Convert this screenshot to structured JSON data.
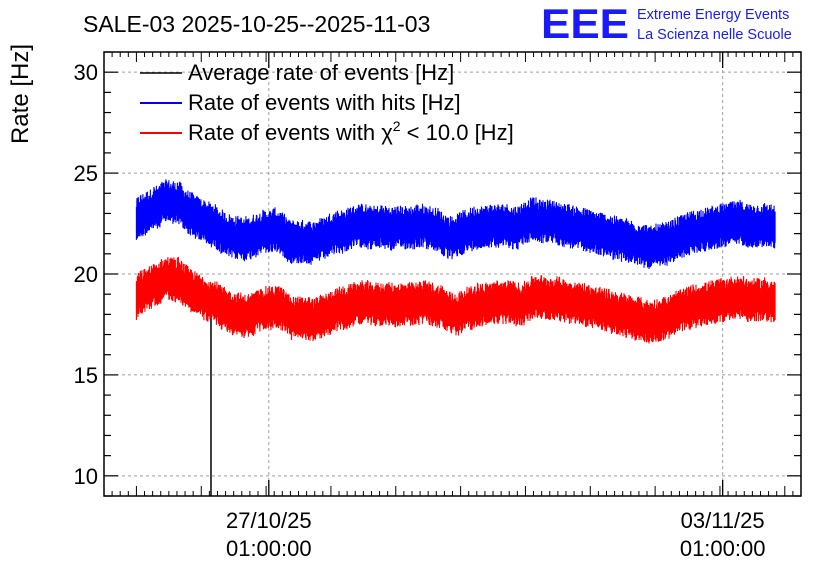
{
  "header": {
    "title": "SALE-03 2025-10-25--2025-11-03",
    "logo_letters": "EEE",
    "logo_line1": "Extreme Energy Events",
    "logo_line2": "La Scienza nelle Scuole"
  },
  "colors": {
    "average": "#000000",
    "hits": "#0000ff",
    "chi2": "#ff0000",
    "logo": "#1a1aff",
    "grid": "#a0a0a0"
  },
  "chart_data": {
    "type": "line",
    "title": "SALE-03 2025-10-25--2025-11-03",
    "xlabel": "",
    "ylabel": "Rate [Hz]",
    "ylim": [
      9,
      31
    ],
    "x_unit": "days since 25/10/25 00:00",
    "xlim": [
      -0.5,
      10.25
    ],
    "yticks": [
      10,
      15,
      20,
      25,
      30
    ],
    "xticks": [
      {
        "x": 2.0417,
        "line1": "27/10/25",
        "line2": "01:00:00"
      },
      {
        "x": 9.0417,
        "line1": "03/11/25",
        "line2": "01:00:00"
      }
    ],
    "grid": true,
    "legend_position": "top-left",
    "series": [
      {
        "name": "Average rate of events [Hz]",
        "key": "average",
        "color": "#000000",
        "x": [
          1.15,
          1.15
        ],
        "values": [
          9.0,
          18.2
        ]
      },
      {
        "name": "Rate of events with hits [Hz]",
        "key": "hits",
        "color": "#0000ff",
        "x_start": 0.0,
        "x_end": 9.85,
        "step_days": 0.125,
        "band_half_width": 1.0,
        "values": [
          22.6,
          22.8,
          22.9,
          22.9,
          23.0,
          23.0,
          23.1,
          23.1,
          23.2,
          23.3,
          23.3,
          23.3,
          23.4,
          23.5,
          23.5,
          23.6,
          23.6,
          23.6,
          23.5,
          23.6,
          23.4,
          23.6,
          23.5,
          23.4,
          23.2,
          23.2,
          23.1,
          23.0,
          23.0,
          22.9,
          22.8,
          22.8,
          22.7,
          22.7,
          22.6,
          22.6,
          22.5,
          22.5,
          22.4,
          22.4,
          22.4,
          22.3,
          22.2,
          22.1,
          22.1,
          22.0,
          21.9,
          21.9,
          21.9,
          21.8,
          21.8,
          21.8,
          21.8,
          21.8,
          21.7,
          21.7,
          21.8,
          21.7,
          21.8,
          21.8,
          21.9,
          21.9,
          22.0,
          22.0,
          22.1,
          22.1,
          22.1,
          22.1,
          22.1,
          22.1,
          22.2,
          22.2,
          22.1,
          22.1,
          22.0,
          21.9,
          21.9,
          21.7,
          21.6,
          21.6,
          21.6,
          21.6,
          21.6,
          21.6,
          21.6,
          21.6,
          21.6,
          21.6,
          21.6,
          21.5,
          21.5,
          21.6,
          21.6,
          21.7,
          21.7,
          21.7,
          21.8,
          21.8,
          21.9,
          22.0,
          22.0,
          22.0,
          22.1,
          22.1,
          22.1,
          22.1,
          22.1,
          22.2,
          22.2,
          22.3,
          22.3,
          22.3,
          22.4,
          22.4,
          22.4,
          22.4,
          22.4,
          22.4,
          22.3,
          22.3,
          22.3,
          22.3,
          22.3,
          22.3,
          22.3,
          22.4,
          22.3,
          22.3,
          22.3,
          22.3,
          22.2,
          22.3,
          22.3,
          22.3,
          22.3,
          22.3,
          22.3,
          22.3,
          22.3,
          22.3,
          22.3,
          22.3,
          22.3,
          22.4,
          22.4,
          22.4,
          22.4,
          22.4,
          22.3,
          22.3,
          22.3,
          22.2,
          22.2,
          22.2,
          22.2,
          22.1,
          22.0,
          21.9,
          21.9,
          21.8,
          21.8,
          21.8,
          21.8,
          21.9,
          21.9,
          22.0,
          22.0,
          22.1,
          22.1,
          22.1,
          22.2,
          22.2,
          22.3,
          22.3,
          22.3,
          22.3,
          22.3,
          22.3,
          22.3,
          22.4,
          22.4,
          22.4,
          22.4,
          22.4,
          22.4,
          22.4,
          22.4,
          22.4,
          22.4,
          22.4,
          22.4,
          22.3,
          22.3,
          22.3,
          22.3,
          22.3,
          22.4,
          22.5,
          22.5,
          22.6,
          22.6,
          22.7,
          22.7,
          22.7,
          22.7,
          22.6,
          22.6,
          22.6,
          22.6,
          22.6,
          22.6,
          22.6,
          22.6,
          22.6,
          22.5,
          22.5,
          22.5,
          22.5,
          22.4,
          22.4,
          22.4,
          22.4,
          22.3,
          22.3,
          22.3,
          22.3,
          22.3,
          22.2,
          22.2,
          22.2,
          22.2,
          22.1,
          22.1,
          22.1,
          22.1,
          22.0,
          22.0,
          22.0,
          22.0,
          21.9,
          21.9,
          21.9,
          21.9,
          21.8,
          21.8,
          21.8,
          21.8,
          21.7,
          21.7,
          21.7,
          21.7,
          21.6,
          21.6,
          21.6,
          21.5,
          21.5,
          21.5,
          21.5,
          21.5,
          21.4,
          21.4,
          21.4,
          21.3,
          21.3,
          21.3,
          21.4,
          21.4,
          21.4,
          21.4,
          21.5,
          21.5,
          21.5,
          21.5,
          21.6,
          21.6,
          21.7,
          21.8,
          21.8,
          21.8,
          21.9,
          21.9,
          22.0,
          22.0,
          22.0,
          22.1,
          22.1,
          22.1,
          22.1,
          22.2,
          22.2,
          22.2,
          22.2,
          22.2,
          22.3,
          22.3,
          22.3,
          22.3,
          22.4,
          22.4,
          22.4,
          22.4,
          22.4,
          22.5,
          22.5,
          22.5,
          22.5,
          22.5,
          22.5,
          22.6,
          22.5,
          22.5,
          22.5,
          22.4,
          22.4,
          22.4,
          22.4,
          22.4,
          22.4,
          22.4,
          22.4,
          22.4,
          22.5,
          22.4,
          22.4,
          22.4,
          22.3,
          22.3
        ]
      },
      {
        "name": "Rate of events with χ² < 10.0 [Hz]",
        "key": "chi2",
        "color": "#ff0000",
        "x_start": 0.0,
        "x_end": 9.85,
        "step_days": 0.125,
        "band_half_width": 1.0,
        "values": [
          18.8,
          19.0,
          19.1,
          19.1,
          19.2,
          19.2,
          19.3,
          19.3,
          19.4,
          19.5,
          19.5,
          19.5,
          19.6,
          19.7,
          19.7,
          19.8,
          19.8,
          19.8,
          19.7,
          19.8,
          19.6,
          19.8,
          19.7,
          19.6,
          19.4,
          19.4,
          19.3,
          19.2,
          19.2,
          19.1,
          19.0,
          19.0,
          18.9,
          18.9,
          18.8,
          18.8,
          18.7,
          18.7,
          18.6,
          18.6,
          18.6,
          18.5,
          18.4,
          18.3,
          18.3,
          18.2,
          18.1,
          18.1,
          18.1,
          18.0,
          18.0,
          18.0,
          18.0,
          18.0,
          17.9,
          17.9,
          18.0,
          17.9,
          18.0,
          18.0,
          18.1,
          18.1,
          18.2,
          18.2,
          18.3,
          18.3,
          18.3,
          18.3,
          18.3,
          18.3,
          18.4,
          18.4,
          18.3,
          18.3,
          18.2,
          18.1,
          18.1,
          17.9,
          17.8,
          17.8,
          17.8,
          17.8,
          17.8,
          17.8,
          17.8,
          17.8,
          17.8,
          17.8,
          17.8,
          17.7,
          17.7,
          17.8,
          17.8,
          17.9,
          17.9,
          17.9,
          18.0,
          18.0,
          18.1,
          18.2,
          18.2,
          18.2,
          18.3,
          18.3,
          18.3,
          18.3,
          18.3,
          18.4,
          18.4,
          18.5,
          18.5,
          18.5,
          18.6,
          18.6,
          18.6,
          18.6,
          18.6,
          18.6,
          18.5,
          18.5,
          18.5,
          18.5,
          18.5,
          18.5,
          18.5,
          18.6,
          18.5,
          18.5,
          18.5,
          18.5,
          18.4,
          18.5,
          18.5,
          18.5,
          18.5,
          18.5,
          18.5,
          18.5,
          18.5,
          18.5,
          18.5,
          18.5,
          18.5,
          18.6,
          18.6,
          18.6,
          18.6,
          18.6,
          18.5,
          18.5,
          18.5,
          18.4,
          18.4,
          18.4,
          18.4,
          18.3,
          18.2,
          18.1,
          18.1,
          18.0,
          18.0,
          18.0,
          18.0,
          18.1,
          18.1,
          18.2,
          18.2,
          18.3,
          18.3,
          18.3,
          18.4,
          18.4,
          18.5,
          18.5,
          18.5,
          18.5,
          18.5,
          18.5,
          18.5,
          18.6,
          18.6,
          18.6,
          18.6,
          18.6,
          18.6,
          18.6,
          18.6,
          18.6,
          18.6,
          18.6,
          18.6,
          18.5,
          18.5,
          18.5,
          18.5,
          18.5,
          18.6,
          18.7,
          18.7,
          18.8,
          18.8,
          18.9,
          18.9,
          18.9,
          18.9,
          18.8,
          18.8,
          18.8,
          18.8,
          18.8,
          18.8,
          18.8,
          18.8,
          18.8,
          18.7,
          18.7,
          18.7,
          18.7,
          18.6,
          18.6,
          18.6,
          18.6,
          18.5,
          18.5,
          18.5,
          18.5,
          18.5,
          18.4,
          18.4,
          18.4,
          18.4,
          18.3,
          18.3,
          18.3,
          18.3,
          18.2,
          18.2,
          18.2,
          18.2,
          18.1,
          18.1,
          18.1,
          18.1,
          18.0,
          18.0,
          18.0,
          18.0,
          17.9,
          17.9,
          17.9,
          17.8,
          17.8,
          17.8,
          17.8,
          17.8,
          17.7,
          17.7,
          17.7,
          17.6,
          17.6,
          17.6,
          17.7,
          17.7,
          17.7,
          17.7,
          17.8,
          17.8,
          17.8,
          17.8,
          17.9,
          17.9,
          18.0,
          18.1,
          18.1,
          18.1,
          18.2,
          18.2,
          18.3,
          18.3,
          18.3,
          18.4,
          18.4,
          18.4,
          18.4,
          18.5,
          18.5,
          18.5,
          18.5,
          18.5,
          18.6,
          18.6,
          18.6,
          18.6,
          18.7,
          18.7,
          18.7,
          18.7,
          18.7,
          18.8,
          18.8,
          18.8,
          18.8,
          18.8,
          18.8,
          18.9,
          18.8,
          18.8,
          18.8,
          18.7,
          18.7,
          18.7,
          18.7,
          18.7,
          18.7,
          18.7,
          18.7,
          18.7,
          18.8,
          18.7,
          18.7,
          18.7,
          18.6,
          18.6
        ]
      }
    ]
  }
}
